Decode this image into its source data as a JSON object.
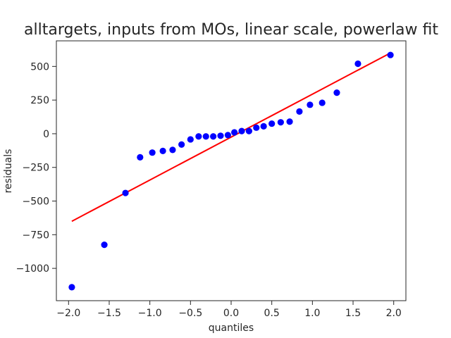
{
  "chart_data": {
    "type": "scatter",
    "title": "alltargets, inputs from MOs, linear scale, powerlaw fit",
    "xlabel": "quantiles",
    "ylabel": "residuals",
    "xlim": [
      -2.15,
      2.15
    ],
    "ylim": [
      -1240,
      690
    ],
    "x_ticks": [
      {
        "value": -2.0,
        "label": "−2.0"
      },
      {
        "value": -1.5,
        "label": "−1.5"
      },
      {
        "value": -1.0,
        "label": "−1.0"
      },
      {
        "value": -0.5,
        "label": "−0.5"
      },
      {
        "value": 0.0,
        "label": "0.0"
      },
      {
        "value": 0.5,
        "label": "0.5"
      },
      {
        "value": 1.0,
        "label": "1.0"
      },
      {
        "value": 1.5,
        "label": "1.5"
      },
      {
        "value": 2.0,
        "label": "2.0"
      }
    ],
    "y_ticks": [
      {
        "value": 500,
        "label": "500"
      },
      {
        "value": 250,
        "label": "250"
      },
      {
        "value": 0,
        "label": "0"
      },
      {
        "value": -250,
        "label": "−250"
      },
      {
        "value": -500,
        "label": "−500"
      },
      {
        "value": -750,
        "label": "−750"
      },
      {
        "value": -1000,
        "label": "−1000"
      }
    ],
    "grid": false,
    "point_color": "#0000ff",
    "line_color": "#ff0000",
    "points": [
      {
        "x": -1.96,
        "y": -1140
      },
      {
        "x": -1.56,
        "y": -825
      },
      {
        "x": -1.3,
        "y": -440
      },
      {
        "x": -1.12,
        "y": -175
      },
      {
        "x": -0.97,
        "y": -140
      },
      {
        "x": -0.84,
        "y": -128
      },
      {
        "x": -0.72,
        "y": -120
      },
      {
        "x": -0.61,
        "y": -80
      },
      {
        "x": -0.5,
        "y": -42
      },
      {
        "x": -0.4,
        "y": -20
      },
      {
        "x": -0.31,
        "y": -20
      },
      {
        "x": -0.22,
        "y": -20
      },
      {
        "x": -0.13,
        "y": -15
      },
      {
        "x": -0.04,
        "y": -10
      },
      {
        "x": 0.04,
        "y": 10
      },
      {
        "x": 0.13,
        "y": 20
      },
      {
        "x": 0.22,
        "y": 20
      },
      {
        "x": 0.31,
        "y": 45
      },
      {
        "x": 0.4,
        "y": 55
      },
      {
        "x": 0.5,
        "y": 75
      },
      {
        "x": 0.61,
        "y": 85
      },
      {
        "x": 0.72,
        "y": 90
      },
      {
        "x": 0.84,
        "y": 165
      },
      {
        "x": 0.97,
        "y": 215
      },
      {
        "x": 1.12,
        "y": 230
      },
      {
        "x": 1.3,
        "y": 305
      },
      {
        "x": 1.56,
        "y": 520
      },
      {
        "x": 1.96,
        "y": 585
      }
    ],
    "fit_line": {
      "x": [
        -1.96,
        1.96
      ],
      "y": [
        -650,
        600
      ]
    }
  }
}
